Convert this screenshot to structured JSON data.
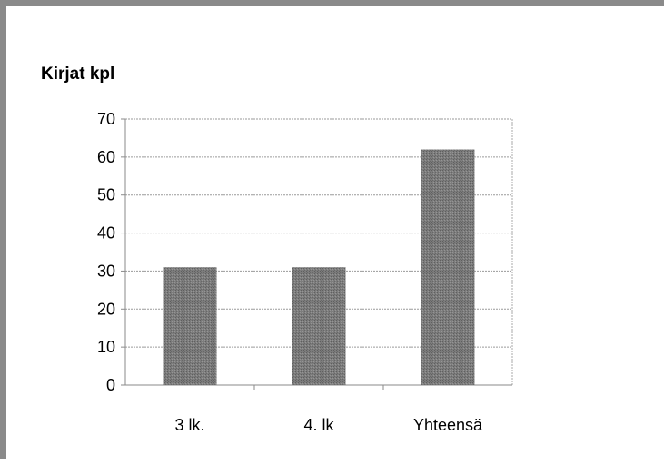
{
  "chart_data": {
    "type": "bar",
    "title": "Kirjat kpl",
    "xlabel": "",
    "ylabel": "",
    "categories": [
      "3 lk.",
      "4. lk",
      "Yhteensä"
    ],
    "values": [
      31,
      31,
      62
    ],
    "ylim": [
      0,
      70
    ],
    "yticks": [
      "0",
      "10",
      "20",
      "30",
      "40",
      "50",
      "60",
      "70"
    ],
    "grid": true,
    "legend": "none",
    "bar_color": "#7a7a7a"
  }
}
